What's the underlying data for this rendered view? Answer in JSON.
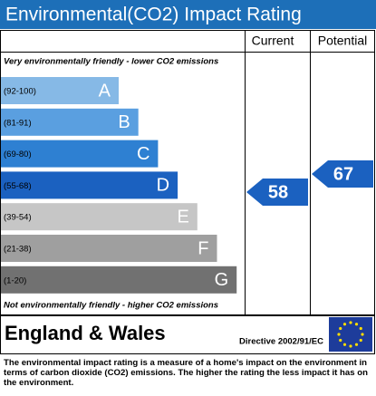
{
  "chart_data": {
    "type": "rating",
    "title": "Environmental(CO2) Impact Rating",
    "columns": [
      "Current",
      "Potential"
    ],
    "top_note": "Very environmentally friendly - lower CO2 emissions",
    "bottom_note": "Not environmentally friendly - higher CO2 emissions",
    "bands": [
      {
        "range": "(92-100)",
        "letter": "A",
        "color": "#86b9e6"
      },
      {
        "range": "(81-91)",
        "letter": "B",
        "color": "#5a9fe0"
      },
      {
        "range": "(69-80)",
        "letter": "C",
        "color": "#2e80d2"
      },
      {
        "range": "(55-68)",
        "letter": "D",
        "color": "#1b61c0"
      },
      {
        "range": "(39-54)",
        "letter": "E",
        "color": "#c6c6c6"
      },
      {
        "range": "(21-38)",
        "letter": "F",
        "color": "#9f9f9f"
      },
      {
        "range": "(1-20)",
        "letter": "G",
        "color": "#717171"
      }
    ],
    "current": 58,
    "potential": 67,
    "arrow_color": "#1b61c0",
    "region": "England & Wales",
    "directive": "Directive 2002/91/EC",
    "description": "The environmental impact rating is a measure of a home's impact on the environment in terms of carbon dioxide (CO2) emissions. The higher the rating the less impact it has on the environment."
  }
}
